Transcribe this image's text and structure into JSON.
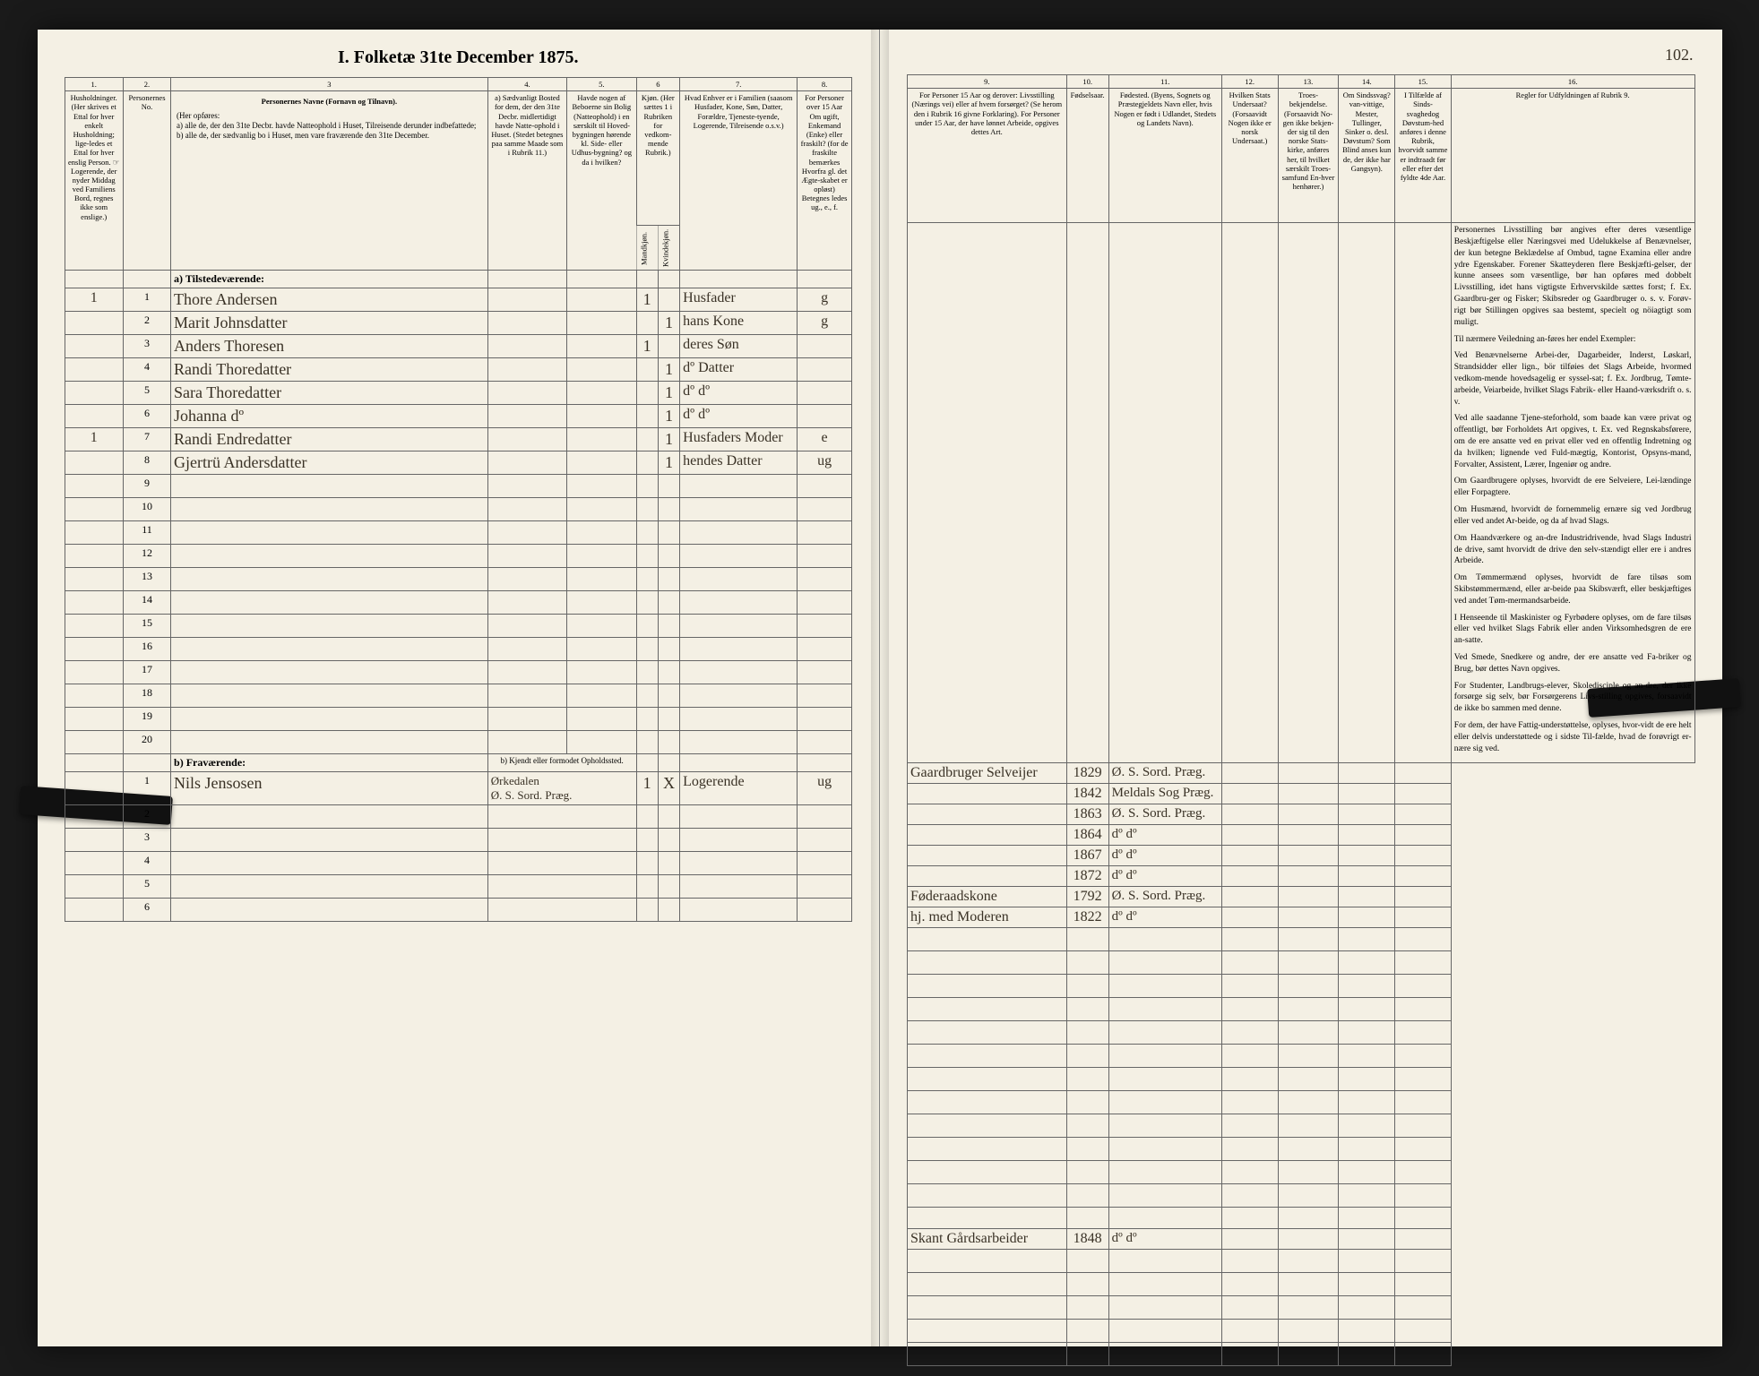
{
  "title": "I. Folketæ 31te December 1875.",
  "page_number": "102.",
  "columns_left": {
    "c1": "1.",
    "c2": "2.",
    "c3": "3",
    "c4": "4.",
    "c5": "5.",
    "c6": "6",
    "c7": "7.",
    "c8": "8."
  },
  "columns_right": {
    "c9": "9.",
    "c10": "10.",
    "c11": "11.",
    "c12": "12.",
    "c13": "13.",
    "c14": "14.",
    "c15": "15.",
    "c16": "16."
  },
  "headers_left": {
    "h1": "Husholdninger. (Her skrives et Ettal for hver enkelt Husholdning; lige-ledes et Ettal for hver enslig Person. ☞ Logerende, der nyder Middag ved Familiens Bord, regnes ikke som enslige.)",
    "h2": "Personernes No.",
    "h3_title": "Personernes Navne (Fornavn og Tilnavn).",
    "h3_sub": "(Her opføres:\na) alle de, der den 31te Decbr. havde Natteophold i Huset, Tilreisende derunder indbefattede;\nb) alle de, der sædvanlig bo i Huset, men vare fraværende den 31te December.",
    "h4": "a) Sædvanligt Bosted for dem, der den 31te Decbr. midlertidigt havde Natte-ophold i Huset. (Stedet betegnes paa samme Maade som i Rubrik 11.)",
    "h5": "Havde nogen af Beboerne sin Bolig (Natteophold) i en særskilt til Hoved-bygningen hørende kl. Side- eller Udhus-bygning? og da i hvilken?",
    "h6": "Kjøn. (Her sættes 1 i Rubriken for vedkom-mende Rubrik.)",
    "h6m": "Mandkjøn.",
    "h6k": "Kvindekjøn.",
    "h7": "Hvad Enhver er i Familien (saasom Husfader, Kone, Søn, Datter, Forældre, Tjeneste-tyende, Logerende, Tilreisende o.s.v.)",
    "h8": "For Personer over 15 Aar Om ugift, Enkemand (Enke) eller fraskilt? (for de fraskilte bemærkes Hvorfra gl. det Ægte-skabet er opløst) Betegnes ledes ug., e., f."
  },
  "headers_right": {
    "h9": "For Personer 15 Aar og derover: Livsstilling (Nærings vei) eller af hvem forsørget? (Se herom den i Rubrik 16 givne Forklaring). For Personer under 15 Aar, der have lønnet Arbeide, opgives dettes Art.",
    "h10": "Fødselsaar.",
    "h11": "Fødested. (Byens, Sognets og Præstegjeldets Navn eller, hvis Nogen er født i Udlandet, Stedets og Landets Navn).",
    "h12": "Hvilken Stats Undersaat? (Forsaavidt Nogen ikke er norsk Undersaat.)",
    "h13": "Troes-bekjendelse. (Forsaavidt No-gen ikke bekjen-der sig til den norske Stats-kirke, anføres her, til hvilket særskilt Troes-samfund En-hver henhører.)",
    "h14": "Om Sindssvag? van-vittige, Mester, Tullinger, Sinker o. desl. Døvstum? Som Blind anses kun de, der ikke har Gangsyn).",
    "h15": "I Tilfælde af Sinds-svaghedog Døvstum-hed anføres i denne Rubrik, hvorvidt samme er indtraadt før eller efter det fyldte 4de Aar.",
    "h16": "Regler for Udfyldningen af Rubrik 9."
  },
  "section_a": "a) Tilstedeværende:",
  "section_b_left": "b) Fraværende:",
  "section_b_right_h4": "b) Kjendt eller formodet Opholdssted.",
  "rows_a": [
    {
      "n": "1",
      "hh": "1",
      "name": "Thore Andersen",
      "m": "1",
      "k": "",
      "fam": "Husfader",
      "civ": "g",
      "liv": "Gaardbruger Selveijer",
      "aar": "1829",
      "sted": "Ø. S. Sord. Præg."
    },
    {
      "n": "2",
      "hh": "",
      "name": "Marit Johnsdatter",
      "m": "",
      "k": "1",
      "fam": "hans Kone",
      "civ": "g",
      "liv": "",
      "aar": "1842",
      "sted": "Meldals Sog Præg."
    },
    {
      "n": "3",
      "hh": "",
      "name": "Anders Thoresen",
      "m": "1",
      "k": "",
      "fam": "deres Søn",
      "civ": "",
      "liv": "",
      "aar": "1863",
      "sted": "Ø. S. Sord. Præg."
    },
    {
      "n": "4",
      "hh": "",
      "name": "Randi Thoredatter",
      "m": "",
      "k": "1",
      "fam": "dº Datter",
      "civ": "",
      "liv": "",
      "aar": "1864",
      "sted": "dº   dº"
    },
    {
      "n": "5",
      "hh": "",
      "name": "Sara Thoredatter",
      "m": "",
      "k": "1",
      "fam": "dº   dº",
      "civ": "",
      "liv": "",
      "aar": "1867",
      "sted": "dº   dº"
    },
    {
      "n": "6",
      "hh": "",
      "name": "Johanna   dº",
      "m": "",
      "k": "1",
      "fam": "dº   dº",
      "civ": "",
      "liv": "",
      "aar": "1872",
      "sted": "dº   dº"
    },
    {
      "n": "7",
      "hh": "1",
      "name": "Randi Endredatter",
      "m": "",
      "k": "1",
      "fam": "Husfaders Moder",
      "civ": "e",
      "liv": "Føderaadskone",
      "aar": "1792",
      "sted": "Ø. S. Sord. Præg."
    },
    {
      "n": "8",
      "hh": "",
      "name": "Gjertrü Andersdatter",
      "m": "",
      "k": "1",
      "fam": "hendes Datter",
      "civ": "ug",
      "liv": "hj. med Moderen",
      "aar": "1822",
      "sted": "dº   dº"
    }
  ],
  "empty_a_rows": [
    "9",
    "10",
    "11",
    "12",
    "13",
    "14",
    "15",
    "16",
    "17",
    "18",
    "19",
    "20"
  ],
  "rows_b": [
    {
      "n": "1",
      "name": "Nils Jensosen",
      "opln": "Ørkedalen\nØ. S. Sord. Præg.",
      "m": "1",
      "k": "X",
      "fam": "Logerende",
      "civ": "ug",
      "liv": "Skant Gårdsarbeider",
      "aar": "1848",
      "sted": "dº   dº"
    }
  ],
  "empty_b_rows": [
    "2",
    "3",
    "4",
    "5",
    "6"
  ],
  "notes": [
    "Personernes Livsstilling bør angives efter deres væsentlige Beskjæftigelse eller Næringsvei med Udelukkelse af Benævnelser, der kun betegne Beklædelse af Ombud, tagne Examina eller andre ydre Egenskaber. Forener Skatteyderen flere Beskjæfti-gelser, der kunne ansees som væsentlige, bør han opføres med dobbelt Livsstilling, idet hans vigtigste Erhvervskilde sættes forst; f. Ex. Gaardbru-ger og Fisker; Skibsreder og Gaardbruger o. s. v. Forøv-rigt bør Stillingen opgives saa bestemt, specielt og nöiagtigt som muligt.",
    "Til nærmere Veiledning an-føres her endel Exempler:",
    "Ved Benævnelserne Arbei-der, Dagarbeider, Inderst, Løskarl, Strandsidder eller lign., bör tilføies det Slags Arbeide, hvormed vedkom-mende hovedsagelig er syssel-sat; f. Ex. Jordbrug, Tømte-arbeide, Veiarbeide, hvilket Slags Fabrik- eller Haand-værksdrift o. s. v.",
    "Ved alle saadanne Tjene-steforhold, som baade kan være privat og offentligt, bør Forholdets Art opgives, t. Ex. ved Regnskabsførere, om de ere ansatte ved en privat eller ved en offentlig Indretning og da hvilken; lignende ved Fuld-mægtig, Kontorist, Opsyns-mand, Forvalter, Assistent, Lærer, Ingeniør og andre.",
    "Om Gaardbrugere oplyses, hvorvidt de ere Selveiere, Lei-lændinge eller Forpagtere.",
    "Om Husmænd, hvorvidt de fornemmelig ernære sig ved Jordbrug eller ved andet Ar-beide, og da af hvad Slags.",
    "Om Haandværkere og an-dre Industridrivende, hvad Slags Industri de drive, samt hvorvidt de drive den selv-stændigt eller ere i andres Arbeide.",
    "Om Tømmermænd oplyses, hvorvidt de fare tilsøs som Skibstømmermænd, eller ar-beide paa Skibsværft, eller beskjæftiges ved andet Tøm-mermandsarbeide.",
    "I Henseende til Maskinister og Fyrbødere oplyses, om de fare tilsøs eller ved hvilket Slags Fabrik eller anden Virksomhedsgren de ere an-satte.",
    "Ved Smede, Snedkere og andre, der ere ansatte ved Fa-briker og Brug, bør dettes Navn opgives.",
    "For Studenter, Landbrugs-elever, Skoledisciple og an-dre, der ikke forsørge sig selv, bør Forsørgerens Livs-stilling opgives, forsaavidt de ikke bo sammen med denne.",
    "For dem, der have Fattig-understøttelse, oplyses, hvor-vidt de ere helt eller delvis understøttede og i sidste Til-fælde, hvad de forøvrigt er-nære sig ved."
  ]
}
